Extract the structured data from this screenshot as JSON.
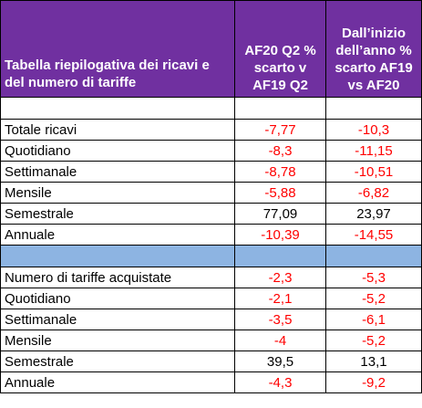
{
  "header": {
    "title": "Tabella riepilogativa dei ricavi e del numero di tariffe",
    "col1": "AF20 Q2 % scarto v AF19 Q2",
    "col2": "Dall’inizio dell’anno % scarto AF19 vs AF20"
  },
  "colors": {
    "header_bg": "#7030a0",
    "header_text": "#ffffff",
    "separator_bg": "#8db4e2",
    "negative": "#ff0000",
    "positive": "#000000"
  },
  "revenue": [
    {
      "label": "Totale ricavi",
      "q2": "-7,77",
      "ytd": "-10,3"
    },
    {
      "label": "Quotidiano",
      "q2": "-8,3",
      "ytd": "-11,15"
    },
    {
      "label": "Settimanale",
      "q2": "-8,78",
      "ytd": "-10,51"
    },
    {
      "label": "Mensile",
      "q2": "-5,88",
      "ytd": "-6,82"
    },
    {
      "label": "Semestrale",
      "q2": "77,09",
      "ytd": "23,97"
    },
    {
      "label": "Annuale",
      "q2": "-10,39",
      "ytd": "-14,55"
    }
  ],
  "tariffs": [
    {
      "label": "Numero di tariffe acquistate",
      "q2": "-2,3",
      "ytd": "-5,3"
    },
    {
      "label": "Quotidiano",
      "q2": "-2,1",
      "ytd": "-5,2"
    },
    {
      "label": "Settimanale",
      "q2": "-3,5",
      "ytd": "-6,1"
    },
    {
      "label": "Mensile",
      "q2": "-4",
      "ytd": "-5,2"
    },
    {
      "label": "Semestrale",
      "q2": "39,5",
      "ytd": "13,1"
    },
    {
      "label": "Annuale",
      "q2": "-4,3",
      "ytd": "-9,2"
    }
  ]
}
